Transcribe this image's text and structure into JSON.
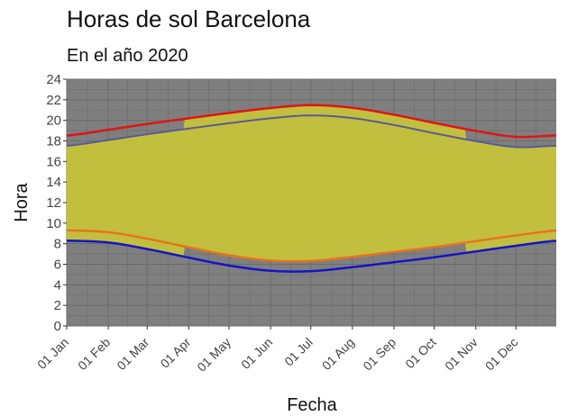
{
  "chart_data": {
    "type": "line",
    "title": "Horas de sol Barcelona",
    "subtitle": "En el año 2020",
    "xlabel": "Fecha",
    "ylabel": "Hora",
    "ylim": [
      0,
      24
    ],
    "yticks": [
      0,
      2,
      4,
      6,
      8,
      10,
      12,
      14,
      16,
      18,
      20,
      22,
      24
    ],
    "xlim": [
      "2020-01-01",
      "2020-12-31"
    ],
    "xtick_labels": [
      "01 Jan",
      "01 Feb",
      "01 Mar",
      "01 Apr",
      "01 May",
      "01 Jun",
      "01 Jul",
      "01 Aug",
      "01 Sep",
      "01 Oct",
      "01 Nov",
      "01 Dec"
    ],
    "xtick_dates": [
      "2020-01-01",
      "2020-02-01",
      "2020-03-01",
      "2020-04-01",
      "2020-05-01",
      "2020-06-01",
      "2020-07-01",
      "2020-08-01",
      "2020-09-01",
      "2020-10-01",
      "2020-11-01",
      "2020-12-01"
    ],
    "grid": true,
    "dates": [
      "2020-01-01",
      "2020-02-01",
      "2020-03-01",
      "2020-04-01",
      "2020-05-01",
      "2020-06-01",
      "2020-07-01",
      "2020-08-01",
      "2020-09-01",
      "2020-10-01",
      "2020-11-01",
      "2020-12-01",
      "2020-12-31"
    ],
    "series": [
      {
        "role": "sunrise_utc1",
        "color": "#1414c8",
        "values": [
          8.3,
          8.12,
          7.48,
          6.65,
          5.88,
          5.37,
          5.33,
          5.72,
          6.2,
          6.68,
          7.25,
          7.8,
          8.28
        ]
      },
      {
        "role": "sunset_utc1",
        "color": "#5a5a96",
        "values": [
          17.53,
          18.08,
          18.65,
          19.2,
          19.72,
          20.2,
          20.48,
          20.22,
          19.55,
          18.75,
          17.98,
          17.4,
          17.53
        ]
      },
      {
        "role": "sunrise_utc2",
        "color": "#e8731e",
        "values": [
          9.3,
          9.12,
          8.48,
          7.65,
          6.88,
          6.37,
          6.33,
          6.72,
          7.2,
          7.68,
          8.25,
          8.8,
          9.28
        ]
      },
      {
        "role": "sunset_utc2",
        "color": "#e01414",
        "values": [
          18.53,
          19.08,
          19.65,
          20.2,
          20.72,
          21.2,
          21.48,
          21.22,
          20.55,
          19.75,
          18.98,
          18.4,
          18.53
        ]
      }
    ],
    "daylight_fill": {
      "color": "#c8c43a",
      "dst_start": "2020-03-29",
      "dst_end": "2020-10-25"
    },
    "background_color": "#7f7f7f"
  }
}
